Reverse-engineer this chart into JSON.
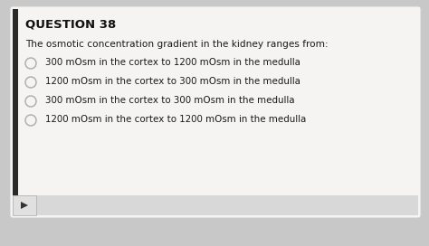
{
  "title": "QUESTION 38",
  "question": "The osmotic concentration gradient in the kidney ranges from:",
  "options": [
    "300 mOsm in the cortex to 1200 mOsm in the medulla",
    "1200 mOsm in the cortex to 300 mOsm in the medulla",
    "300 mOsm in the cortex to 300 mOsm in the medulla",
    "1200 mOsm in the cortex to 1200 mOsm in the medulla"
  ],
  "bg_color": "#c8c8c8",
  "card_bg": "#f5f4f2",
  "card_edge": "#d0cece",
  "title_color": "#111111",
  "text_color": "#1a1a1a",
  "circle_edge": "#b0b0b0",
  "left_bar_color": "#2a2a2a",
  "bottom_bar_color": "#d8d8d8",
  "play_btn_color": "#333333",
  "title_fontsize": 9.5,
  "question_fontsize": 7.6,
  "option_fontsize": 7.4
}
